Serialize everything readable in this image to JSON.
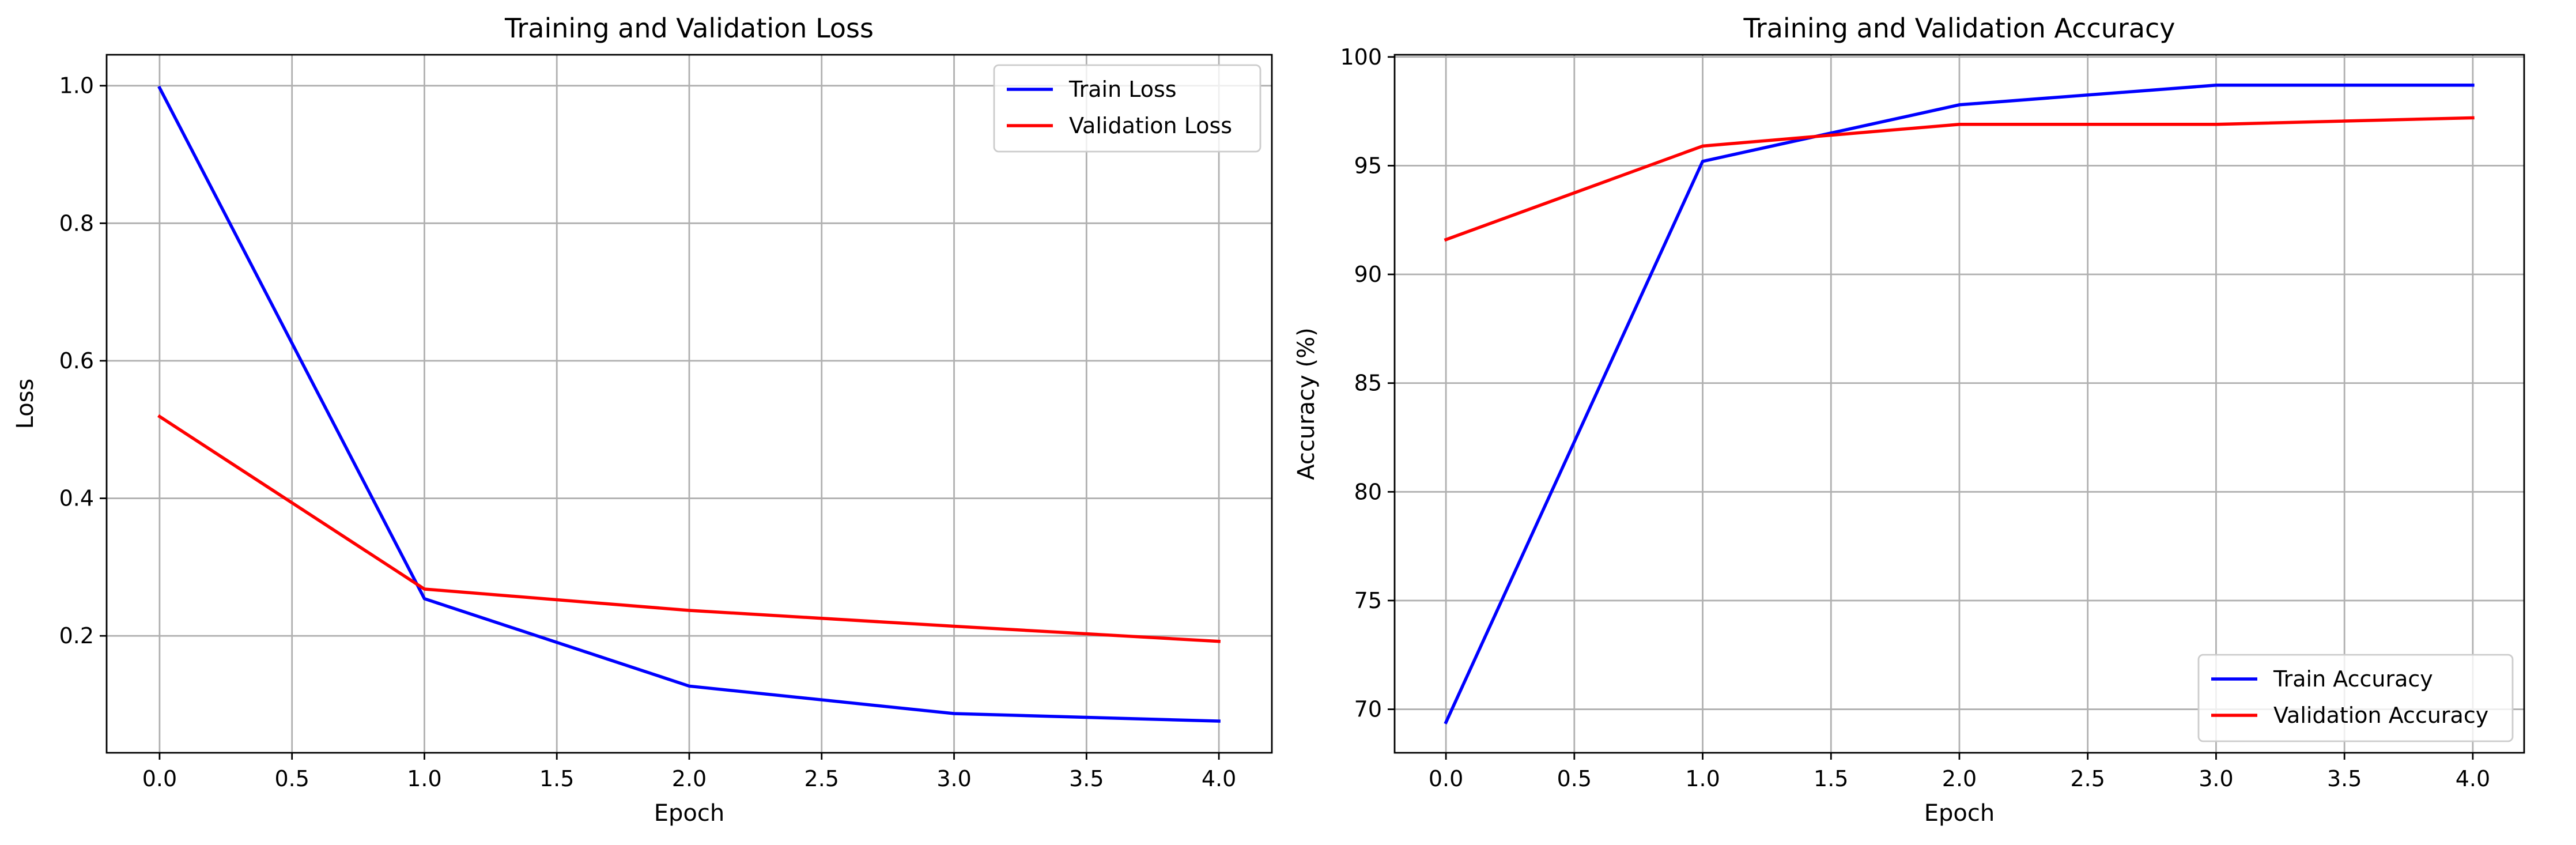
{
  "chart_data": [
    {
      "type": "line",
      "title": "Training and Validation Loss",
      "xlabel": "Epoch",
      "ylabel": "Loss",
      "xlim": [
        -0.2,
        4.2
      ],
      "ylim": [
        0.03,
        1.045
      ],
      "xticks": [
        0.0,
        0.5,
        1.0,
        1.5,
        2.0,
        2.5,
        3.0,
        3.5,
        4.0
      ],
      "xtick_labels": [
        "0.0",
        "0.5",
        "1.0",
        "1.5",
        "2.0",
        "2.5",
        "3.0",
        "3.5",
        "4.0"
      ],
      "yticks": [
        0.2,
        0.4,
        0.6,
        0.8,
        1.0
      ],
      "ytick_labels": [
        "0.2",
        "0.4",
        "0.6",
        "0.8",
        "1.0"
      ],
      "grid": true,
      "legend_position": "upper right",
      "x": [
        0,
        1,
        2,
        3,
        4
      ],
      "series": [
        {
          "name": "Train Loss",
          "color": "#0000ff",
          "values": [
            0.997,
            0.254,
            0.127,
            0.087,
            0.076
          ]
        },
        {
          "name": "Validation Loss",
          "color": "#ff0000",
          "values": [
            0.519,
            0.268,
            0.237,
            0.214,
            0.192
          ]
        }
      ]
    },
    {
      "type": "line",
      "title": "Training and Validation Accuracy",
      "xlabel": "Epoch",
      "ylabel": "Accuracy (%)",
      "xlim": [
        -0.2,
        4.2
      ],
      "ylim": [
        68.0,
        100.1
      ],
      "xticks": [
        0.0,
        0.5,
        1.0,
        1.5,
        2.0,
        2.5,
        3.0,
        3.5,
        4.0
      ],
      "xtick_labels": [
        "0.0",
        "0.5",
        "1.0",
        "1.5",
        "2.0",
        "2.5",
        "3.0",
        "3.5",
        "4.0"
      ],
      "yticks": [
        70,
        75,
        80,
        85,
        90,
        95,
        100
      ],
      "ytick_labels": [
        "70",
        "75",
        "80",
        "85",
        "90",
        "95",
        "100"
      ],
      "grid": true,
      "legend_position": "lower right",
      "x": [
        0,
        1,
        2,
        3,
        4
      ],
      "series": [
        {
          "name": "Train Accuracy",
          "color": "#0000ff",
          "values": [
            69.4,
            95.2,
            97.8,
            98.7,
            98.7
          ]
        },
        {
          "name": "Validation Accuracy",
          "color": "#ff0000",
          "values": [
            91.6,
            95.9,
            96.9,
            96.9,
            97.2
          ]
        }
      ]
    }
  ]
}
